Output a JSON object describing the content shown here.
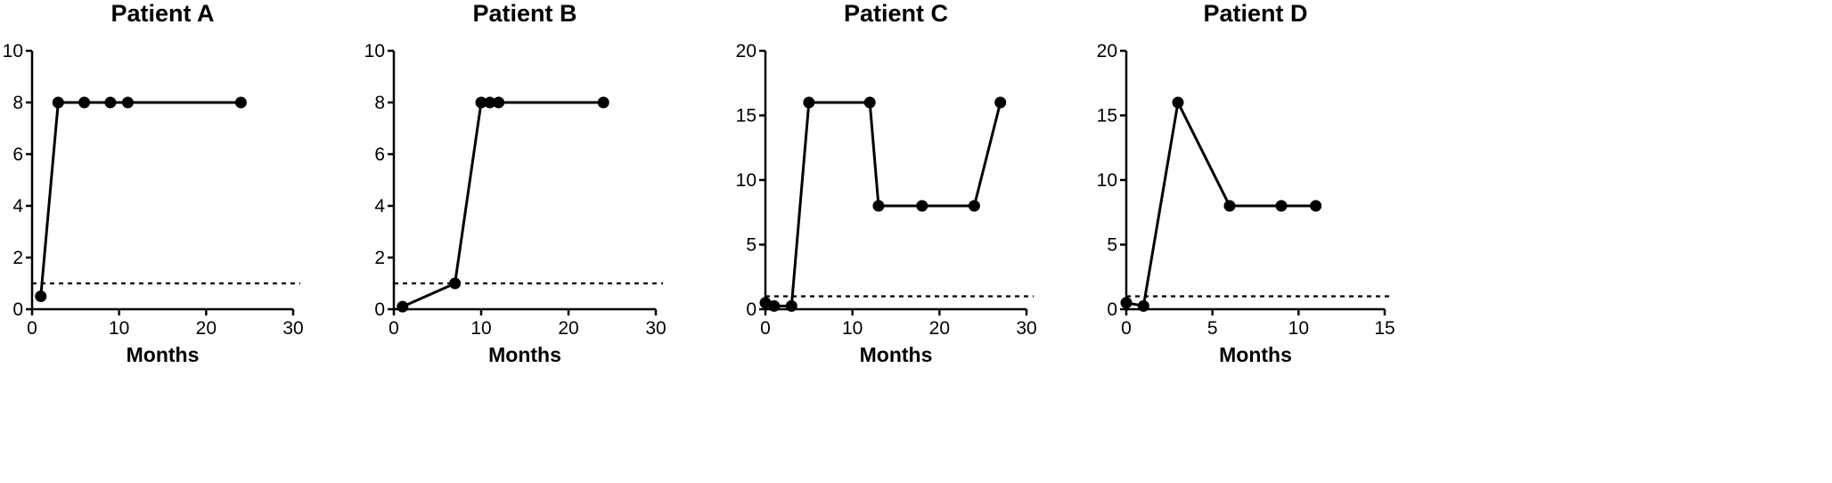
{
  "chart_data": [
    {
      "type": "line",
      "title": "Patient A",
      "xlabel": "Months",
      "ylabel": "",
      "xlim": [
        0,
        30
      ],
      "ylim": [
        0,
        10
      ],
      "xticks": [
        0,
        10,
        20,
        30
      ],
      "yticks": [
        0,
        2,
        4,
        6,
        8,
        10
      ],
      "x": [
        1,
        3,
        6,
        9,
        11,
        24
      ],
      "y": [
        0.5,
        8,
        8,
        8,
        8,
        8
      ],
      "reference_line": 1
    },
    {
      "type": "line",
      "title": "Patient B",
      "xlabel": "Months",
      "ylabel": "",
      "xlim": [
        0,
        30
      ],
      "ylim": [
        0,
        10
      ],
      "xticks": [
        0,
        10,
        20,
        30
      ],
      "yticks": [
        0,
        2,
        4,
        6,
        8,
        10
      ],
      "x": [
        1,
        7,
        10,
        11,
        12,
        24
      ],
      "y": [
        0.1,
        1,
        8,
        8,
        8,
        8
      ],
      "reference_line": 1
    },
    {
      "type": "line",
      "title": "Patient C",
      "xlabel": "Months",
      "ylabel": "",
      "xlim": [
        0,
        30
      ],
      "ylim": [
        0,
        20
      ],
      "xticks": [
        0,
        10,
        20,
        30
      ],
      "yticks": [
        0,
        5,
        10,
        15,
        20
      ],
      "x": [
        0,
        1,
        3,
        5,
        12,
        13,
        18,
        24,
        27
      ],
      "y": [
        0.5,
        0.25,
        0.25,
        16,
        16,
        8,
        8,
        8,
        16
      ],
      "reference_line": 1
    },
    {
      "type": "line",
      "title": "Patient D",
      "xlabel": "Months",
      "ylabel": "",
      "xlim": [
        0,
        15
      ],
      "ylim": [
        0,
        20
      ],
      "xticks": [
        0,
        5,
        10,
        15
      ],
      "yticks": [
        0,
        5,
        10,
        15,
        20
      ],
      "x": [
        0,
        1,
        3,
        6,
        9,
        11
      ],
      "y": [
        0.5,
        0.25,
        16,
        8,
        8,
        8
      ],
      "reference_line": 1
    }
  ]
}
